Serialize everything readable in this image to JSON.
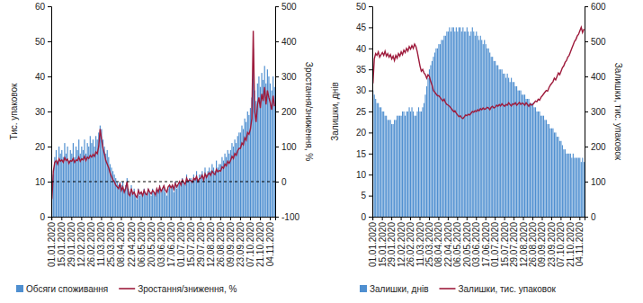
{
  "chart_data": [
    {
      "type": "bar",
      "categories": [
        "01.01.2020",
        null,
        null,
        null,
        null,
        null,
        null,
        "15.01.2020",
        null,
        null,
        null,
        null,
        null,
        null,
        "29.01.2020",
        null,
        null,
        null,
        null,
        null,
        null,
        "12.02.2020",
        null,
        null,
        null,
        null,
        null,
        null,
        "26.02.2020",
        null,
        null,
        null,
        null,
        null,
        null,
        "11.03.2020",
        null,
        null,
        null,
        null,
        null,
        null,
        "25.03.2020",
        null,
        null,
        null,
        null,
        null,
        null,
        "08.04.2020",
        null,
        null,
        null,
        null,
        null,
        null,
        "22.04.2020",
        null,
        null,
        null,
        null,
        null,
        null,
        "06.05.2020",
        null,
        null,
        null,
        null,
        null,
        null,
        "20.05.2020",
        null,
        null,
        null,
        null,
        null,
        null,
        "03.06.2020",
        null,
        null,
        null,
        null,
        null,
        null,
        "17.06.2020",
        null,
        null,
        null,
        null,
        null,
        null,
        "01.07.2020",
        null,
        null,
        null,
        null,
        null,
        null,
        "15.07.2020",
        null,
        null,
        null,
        null,
        null,
        null,
        "29.07.2020",
        null,
        null,
        null,
        null,
        null,
        null,
        "12.08.2020",
        null,
        null,
        null,
        null,
        null,
        null,
        "26.08.2020",
        null,
        null,
        null,
        null,
        null,
        null,
        "09.09.2020",
        null,
        null,
        null,
        null,
        null,
        null,
        "23.09.2020",
        null,
        null,
        null,
        null,
        null,
        null,
        "07.10.2020",
        null,
        null,
        null,
        null,
        null,
        null,
        "21.10.2020",
        null,
        null,
        null,
        null,
        null,
        null,
        "04.11.2020",
        null,
        null,
        null
      ],
      "y_label": "Тис. упаковок",
      "y2_label": "Зростання/зниження, %",
      "ylim": [
        0,
        60
      ],
      "yticks": [
        0,
        10,
        20,
        30,
        40,
        50,
        60
      ],
      "y2lim": [
        -100,
        500
      ],
      "y2ticks": [
        -100,
        0,
        100,
        200,
        300,
        400,
        500
      ],
      "grid": false,
      "legend": "bottom",
      "reference_lines": [
        {
          "value": 0,
          "axis": "y2",
          "line_style": "dashed"
        }
      ],
      "series": [
        {
          "name": "Обсяги споживання",
          "type": "bar",
          "color": "#4f8fd0",
          "values": [
            5,
            12,
            17,
            19,
            16,
            20,
            18,
            19,
            17,
            21,
            18,
            20,
            16,
            19,
            18,
            21,
            17,
            20,
            19,
            22,
            18,
            20,
            19,
            22,
            18,
            21,
            20,
            23,
            21,
            22,
            20,
            23,
            22,
            24,
            26,
            25,
            22,
            20,
            18,
            19,
            17,
            15,
            14,
            13,
            12,
            11,
            10,
            9,
            10,
            9,
            10,
            8,
            9,
            11,
            8,
            7,
            9,
            7,
            8,
            6,
            5,
            8,
            6,
            7,
            6,
            8,
            7,
            6,
            8,
            7,
            6,
            8,
            7,
            6,
            8,
            7,
            9,
            7,
            8,
            9,
            7,
            6,
            8,
            9,
            8,
            9,
            7,
            10,
            8,
            9,
            10,
            9,
            11,
            10,
            9,
            12,
            10,
            11,
            11,
            10,
            12,
            11,
            13,
            10,
            12,
            12,
            13,
            11,
            14,
            12,
            13,
            14,
            13,
            15,
            14,
            13,
            16,
            14,
            15,
            15,
            17,
            16,
            18,
            17,
            19,
            18,
            19,
            21,
            20,
            22,
            21,
            23,
            24,
            24,
            26,
            25,
            28,
            27,
            30,
            29,
            31,
            34,
            48,
            36,
            33,
            38,
            40,
            37,
            41,
            39,
            43,
            38,
            42,
            40,
            38,
            36,
            40,
            37
          ]
        },
        {
          "name": "Зростання/зниження, %",
          "type": "line",
          "axis": "y2",
          "color": "#9e1b3c",
          "values": [
            -50,
            30,
            55,
            60,
            50,
            65,
            58,
            62,
            55,
            68,
            60,
            64,
            52,
            60,
            58,
            66,
            55,
            62,
            60,
            70,
            58,
            65,
            62,
            72,
            60,
            70,
            66,
            75,
            70,
            78,
            72,
            85,
            80,
            100,
            150,
            120,
            95,
            80,
            60,
            50,
            40,
            25,
            15,
            5,
            0,
            -10,
            -15,
            -20,
            -5,
            -25,
            -15,
            -30,
            -20,
            0,
            -35,
            -40,
            -20,
            -35,
            -30,
            -40,
            -45,
            -25,
            -35,
            -30,
            -40,
            -25,
            -35,
            -38,
            -22,
            -30,
            -35,
            -25,
            -30,
            -38,
            -20,
            -30,
            -15,
            -28,
            -20,
            -12,
            -25,
            -30,
            -15,
            -10,
            -18,
            -10,
            -22,
            -5,
            -15,
            -8,
            0,
            -10,
            5,
            -2,
            -8,
            10,
            0,
            5,
            3,
            -2,
            10,
            5,
            15,
            0,
            8,
            10,
            18,
            5,
            22,
            12,
            20,
            25,
            18,
            30,
            24,
            20,
            35,
            28,
            32,
            30,
            42,
            38,
            50,
            45,
            58,
            52,
            60,
            72,
            66,
            80,
            75,
            88,
            95,
            95,
            110,
            105,
            125,
            118,
            140,
            135,
            150,
            180,
            430,
            200,
            170,
            220,
            240,
            210,
            250,
            230,
            270,
            220,
            260,
            240,
            225,
            205,
            245,
            215
          ]
        }
      ]
    },
    {
      "type": "bar",
      "categories": [
        "01.01.2020",
        null,
        null,
        null,
        null,
        null,
        null,
        "15.01.2020",
        null,
        null,
        null,
        null,
        null,
        null,
        "29.01.2020",
        null,
        null,
        null,
        null,
        null,
        null,
        "12.02.2020",
        null,
        null,
        null,
        null,
        null,
        null,
        "26.02.2020",
        null,
        null,
        null,
        null,
        null,
        null,
        "11.03.2020",
        null,
        null,
        null,
        null,
        null,
        null,
        "25.03.2020",
        null,
        null,
        null,
        null,
        null,
        null,
        "08.04.2020",
        null,
        null,
        null,
        null,
        null,
        null,
        "22.04.2020",
        null,
        null,
        null,
        null,
        null,
        null,
        "06.05.2020",
        null,
        null,
        null,
        null,
        null,
        null,
        "20.05.2020",
        null,
        null,
        null,
        null,
        null,
        null,
        "03.06.2020",
        null,
        null,
        null,
        null,
        null,
        null,
        "17.06.2020",
        null,
        null,
        null,
        null,
        null,
        null,
        "01.07.2020",
        null,
        null,
        null,
        null,
        null,
        null,
        "15.07.2020",
        null,
        null,
        null,
        null,
        null,
        null,
        "29.07.2020",
        null,
        null,
        null,
        null,
        null,
        null,
        "12.08.2020",
        null,
        null,
        null,
        null,
        null,
        null,
        "26.08.2020",
        null,
        null,
        null,
        null,
        null,
        null,
        "09.09.2020",
        null,
        null,
        null,
        null,
        null,
        null,
        "23.09.2020",
        null,
        null,
        null,
        null,
        null,
        null,
        "07.10.2020",
        null,
        null,
        null,
        null,
        null,
        null,
        "21.10.2020",
        null,
        null,
        null,
        null,
        null,
        null,
        "04.11.2020",
        null,
        null,
        null
      ],
      "y_label": "Залишки, днів",
      "y2_label": "Залишки, тис. упаковок",
      "ylim": [
        0,
        50
      ],
      "yticks": [
        0,
        5,
        10,
        15,
        20,
        25,
        30,
        35,
        40,
        45,
        50
      ],
      "y2lim": [
        0,
        600
      ],
      "y2ticks": [
        0,
        100,
        200,
        300,
        400,
        500,
        600
      ],
      "grid": false,
      "legend": "bottom",
      "series": [
        {
          "name": "Залишки, днів",
          "type": "bar",
          "color": "#4f8fd0",
          "values": [
            30,
            29,
            28,
            27,
            27,
            26,
            26,
            25,
            25,
            24,
            24,
            23,
            23,
            23,
            22,
            22,
            23,
            23,
            24,
            24,
            24,
            24,
            25,
            25,
            24,
            25,
            25,
            26,
            25,
            26,
            25,
            24,
            24,
            25,
            26,
            25,
            25,
            26,
            27,
            29,
            31,
            33,
            35,
            36,
            37,
            38,
            39,
            40,
            40,
            41,
            41,
            42,
            42,
            43,
            43,
            44,
            44,
            45,
            44,
            45,
            45,
            44,
            45,
            44,
            45,
            45,
            44,
            45,
            44,
            44,
            45,
            44,
            43,
            44,
            45,
            44,
            43,
            44,
            43,
            42,
            43,
            42,
            41,
            42,
            41,
            40,
            40,
            39,
            38,
            38,
            37,
            37,
            36,
            36,
            35,
            35,
            35,
            34,
            34,
            33,
            34,
            33,
            32,
            33,
            32,
            32,
            31,
            31,
            30,
            30,
            30,
            29,
            29,
            29,
            28,
            28,
            28,
            27,
            27,
            27,
            26,
            26,
            25,
            25,
            25,
            24,
            24,
            24,
            23,
            23,
            22,
            22,
            21,
            21,
            21,
            20,
            20,
            19,
            19,
            18,
            18,
            17,
            16,
            16,
            15,
            15,
            15,
            15,
            14,
            15,
            14,
            14,
            14,
            14,
            14,
            13,
            14,
            13
          ]
        },
        {
          "name": "Залишки, тис. упаковок",
          "type": "line",
          "axis": "y2",
          "color": "#9e1b3c",
          "values": [
            380,
            450,
            465,
            460,
            470,
            455,
            462,
            468,
            460,
            472,
            458,
            465,
            455,
            462,
            450,
            458,
            445,
            460,
            452,
            465,
            458,
            470,
            462,
            475,
            468,
            480,
            472,
            485,
            478,
            488,
            480,
            492,
            485,
            470,
            450,
            430,
            415,
            420,
            410,
            405,
            395,
            405,
            400,
            385,
            375,
            360,
            355,
            350,
            345,
            345,
            340,
            335,
            330,
            335,
            325,
            320,
            318,
            315,
            310,
            305,
            300,
            302,
            295,
            290,
            285,
            288,
            282,
            280,
            285,
            290,
            288,
            292,
            290,
            295,
            300,
            298,
            302,
            300,
            305,
            302,
            308,
            305,
            310,
            306,
            308,
            312,
            310,
            305,
            312,
            315,
            310,
            312,
            318,
            315,
            320,
            316,
            322,
            318,
            315,
            320,
            318,
            325,
            320,
            316,
            322,
            320,
            325,
            318,
            322,
            326,
            320,
            324,
            322,
            318,
            325,
            320,
            315,
            322,
            318,
            320,
            325,
            330,
            328,
            335,
            332,
            340,
            345,
            350,
            355,
            360,
            358,
            368,
            375,
            380,
            385,
            395,
            390,
            400,
            410,
            405,
            415,
            425,
            430,
            440,
            445,
            455,
            460,
            470,
            480,
            490,
            500,
            505,
            515,
            520,
            530,
            540,
            525,
            535
          ]
        }
      ]
    }
  ]
}
